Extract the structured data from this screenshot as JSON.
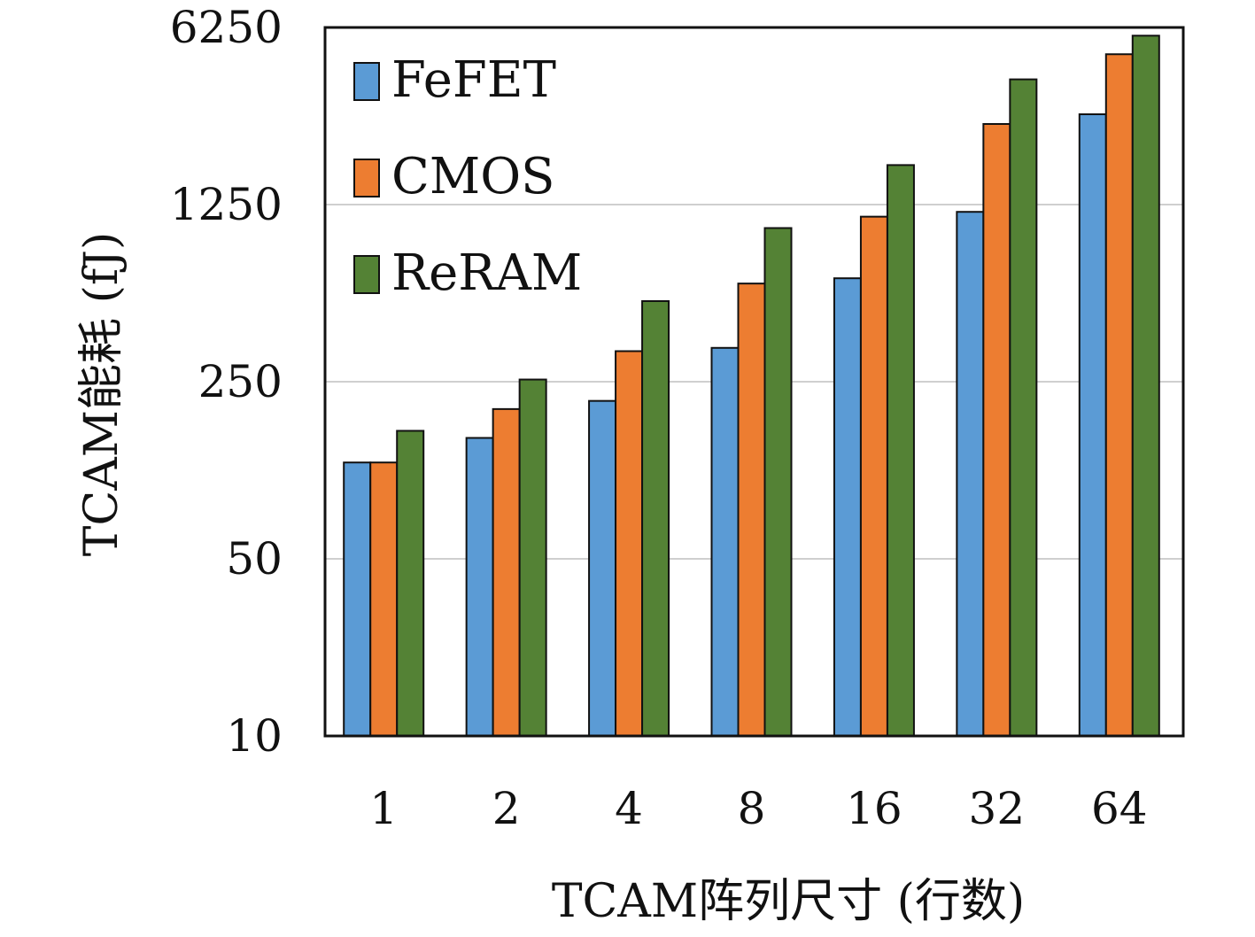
{
  "chart_data": {
    "type": "bar",
    "title": "",
    "xlabel": "TCAM阵列尺寸 (行数)",
    "ylabel": "TCAM能耗 (fJ)",
    "yscale": "log5",
    "ylim": [
      10,
      6250
    ],
    "yticks": [
      "10",
      "50",
      "250",
      "1250",
      "6250"
    ],
    "ytick_values": [
      10,
      50,
      250,
      1250,
      6250
    ],
    "grid": "horizontal",
    "legend_position": "top-left",
    "categories": [
      "1",
      "2",
      "4",
      "8",
      "16",
      "32",
      "64"
    ],
    "series": [
      {
        "name": "FeFET",
        "color": "#5b9bd5",
        "values": [
          120,
          150,
          210,
          340,
          640,
          1170,
          2840
        ]
      },
      {
        "name": "CMOS",
        "color": "#ed7d31",
        "values": [
          120,
          195,
          330,
          610,
          1120,
          2600,
          4900
        ]
      },
      {
        "name": "ReRAM",
        "color": "#548235",
        "values": [
          160,
          255,
          520,
          1010,
          1790,
          3900,
          5800
        ]
      }
    ]
  }
}
